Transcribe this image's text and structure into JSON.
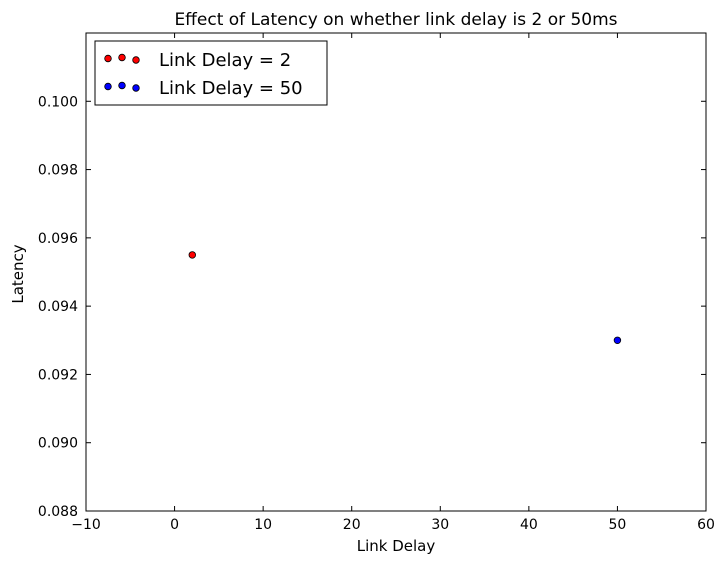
{
  "chart_data": {
    "type": "scatter",
    "title": "Effect of Latency on whether link delay is 2 or 50ms",
    "xlabel": "Link Delay",
    "ylabel": "Latency",
    "xlim": [
      -10,
      60
    ],
    "ylim": [
      0.088,
      0.102
    ],
    "xticks": [
      -10,
      0,
      10,
      20,
      30,
      40,
      50,
      60
    ],
    "xtick_labels": [
      "−10",
      "0",
      "10",
      "20",
      "30",
      "40",
      "50",
      "60"
    ],
    "yticks": [
      0.088,
      0.09,
      0.092,
      0.094,
      0.096,
      0.098,
      0.1
    ],
    "ytick_labels": [
      "0.088",
      "0.090",
      "0.092",
      "0.094",
      "0.096",
      "0.098",
      "0.100"
    ],
    "grid": false,
    "legend_position": "top-left",
    "series": [
      {
        "name": "Link Delay = 2",
        "color": "#ff0000",
        "points": [
          {
            "x": 2,
            "y": 0.0955
          }
        ]
      },
      {
        "name": "Link Delay = 50",
        "color": "#0000ff",
        "points": [
          {
            "x": 50,
            "y": 0.093
          }
        ]
      }
    ]
  }
}
